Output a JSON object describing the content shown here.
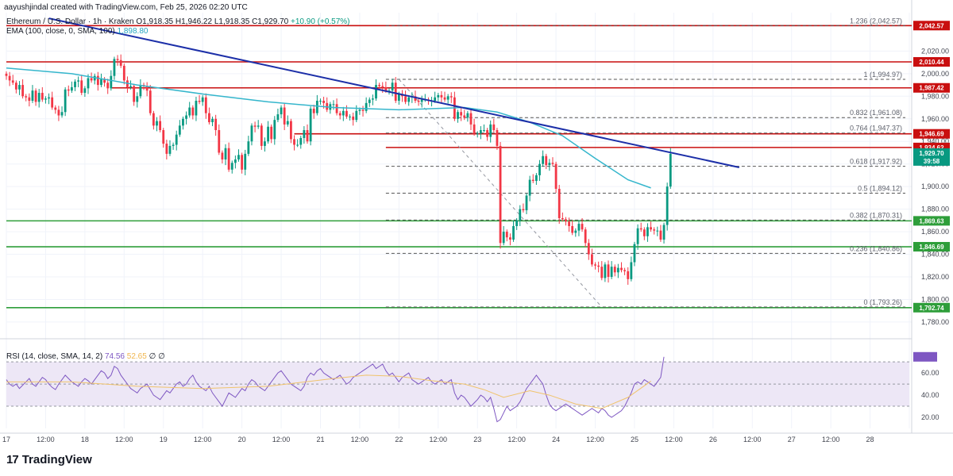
{
  "header": {
    "credit": "aayushjindal created with TradingView.com, Feb 25, 2026 02:20 UTC",
    "symbol": "Ethereum / U.S. Dollar · 1h · Kraken",
    "ohlc": "O1,918.35 H1,946.22 L1,918.35 C1,929.70",
    "change": "+10.90 (+0.57%)",
    "ema_label": "EMA (100, close, 0, SMA, 100)",
    "ema_value": "1,898.80"
  },
  "rsi_legend": {
    "label": "RSI (14, close, SMA, 14, 2)",
    "rsi": "74.56",
    "ma": "52.65",
    "extra": "∅ ∅"
  },
  "brand": {
    "mark": "17",
    "name": "TradingView"
  },
  "colors": {
    "up": "#089981",
    "down": "#f23645",
    "resistance": "#c90f0f",
    "support": "#2e9e3a",
    "trendline": "#1c2fa8",
    "ema": "#35b6cc",
    "rsi": "#7e57c2",
    "rsi_ma": "#f0c36b",
    "rsi_band": "#ede7f6",
    "fib_dash": "#555555"
  },
  "chart_data": {
    "type": "candlestick",
    "title": "Ethereum / U.S. Dollar · 1h · Kraken",
    "currency": "USD",
    "ylim": [
      1768,
      2054
    ],
    "y_ticks": [
      1780,
      1800,
      1820,
      1840,
      1860,
      1880,
      1900,
      1920,
      1940,
      1960,
      1980,
      2000,
      2020
    ],
    "y_tick_labels": [
      "1,780.00",
      "1,800.00",
      "1,820.00",
      "1,840.00",
      "1,860.00",
      "1,880.00",
      "1,900.00",
      "1,920.00",
      "1,940.00",
      "1,960.00",
      "1,980.00",
      "2,000.00",
      "2,020.00"
    ],
    "x_ticks": [
      "17",
      "12:00",
      "18",
      "12:00",
      "19",
      "12:00",
      "20",
      "12:00",
      "21",
      "12:00",
      "22",
      "12:00",
      "23",
      "12:00",
      "24",
      "12:00",
      "25",
      "12:00",
      "26",
      "12:00",
      "27",
      "12:00",
      "28",
      "12:00"
    ],
    "x_tick_hours": [
      0,
      12,
      24,
      36,
      48,
      60,
      72,
      84,
      96,
      108,
      120,
      132,
      144,
      156,
      168,
      180,
      192,
      204,
      216,
      228,
      240,
      252,
      264,
      276
    ],
    "last_price": "1,929.70",
    "countdown": "39:58",
    "horizontal_levels": [
      {
        "price": 2042.57,
        "label": "2,042.57",
        "kind": "resistance",
        "from_hour": 0
      },
      {
        "price": 2010.44,
        "label": "2,010.44",
        "kind": "resistance",
        "from_hour": 0
      },
      {
        "price": 1987.42,
        "label": "1,987.42",
        "kind": "resistance",
        "from_hour": 32
      },
      {
        "price": 1946.69,
        "label": "1,946.69",
        "kind": "resistance",
        "from_hour": 88
      },
      {
        "price": 1934.62,
        "label": "1,934.62",
        "kind": "resistance",
        "from_hour": 116
      },
      {
        "price": 1869.63,
        "label": "1,869.63",
        "kind": "support",
        "from_hour": 0
      },
      {
        "price": 1846.69,
        "label": "1,846.69",
        "kind": "support",
        "from_hour": 0
      },
      {
        "price": 1792.74,
        "label": "1,792.74",
        "kind": "support",
        "from_hour": 0
      }
    ],
    "fibonacci": [
      {
        "level": "1.236",
        "price": 2042.57,
        "label": "1.236 (2,042.57)"
      },
      {
        "level": "1",
        "price": 1994.97,
        "label": "1 (1,994.97)"
      },
      {
        "level": "0.832",
        "price": 1961.08,
        "label": "0.832 (1,961.08)"
      },
      {
        "level": "0.764",
        "price": 1947.37,
        "label": "0.764 (1,947.37)"
      },
      {
        "level": "0.618",
        "price": 1917.92,
        "label": "0.618 (1,917.92)"
      },
      {
        "level": "0.5",
        "price": 1894.12,
        "label": "0.5 (1,894.12)"
      },
      {
        "level": "0.382",
        "price": 1870.31,
        "label": "0.382 (1,870.31)"
      },
      {
        "level": "0.236",
        "price": 1840.86,
        "label": "0.236 (1,840.86)"
      },
      {
        "level": "0",
        "price": 1793.26,
        "label": "0 (1,793.26)"
      }
    ],
    "fib_range_hours": [
      116,
      192
    ],
    "trendline": [
      {
        "hour": 13,
        "price": 2049
      },
      {
        "hour": 224,
        "price": 1917
      }
    ],
    "fib_guide": [
      {
        "hour": 120,
        "price": 1994.97
      },
      {
        "hour": 182,
        "price": 1793.26
      }
    ],
    "closes": [
      1998,
      1994,
      1992,
      1986,
      1990,
      1980,
      1979,
      1976,
      1985,
      1975,
      1983,
      1977,
      1978,
      1979,
      1970,
      1968,
      1963,
      1966,
      1986,
      1985,
      1988,
      1993,
      1994,
      1983,
      1987,
      1996,
      1994,
      1998,
      1990,
      1995,
      1992,
      1987,
      1998,
      2013,
      2012,
      2007,
      1994,
      1988,
      1989,
      1975,
      1980,
      1990,
      1989,
      1985,
      1965,
      1954,
      1958,
      1950,
      1938,
      1929,
      1936,
      1937,
      1946,
      1954,
      1960,
      1963,
      1970,
      1963,
      1976,
      1975,
      1979,
      1965,
      1957,
      1960,
      1950,
      1930,
      1924,
      1934,
      1915,
      1921,
      1924,
      1928,
      1915,
      1929,
      1940,
      1954,
      1953,
      1954,
      1936,
      1940,
      1953,
      1942,
      1959,
      1964,
      1970,
      1955,
      1958,
      1942,
      1937,
      1937,
      1943,
      1950,
      1940,
      1969,
      1965,
      1976,
      1976,
      1974,
      1968,
      1973,
      1973,
      1965,
      1963,
      1967,
      1962,
      1962,
      1959,
      1967,
      1968,
      1967,
      1974,
      1977,
      1978,
      1990,
      1989,
      1988,
      1985,
      1985,
      1992,
      1976,
      1982,
      1980,
      1975,
      1979,
      1980,
      1976,
      1975,
      1977,
      1977,
      1976,
      1976,
      1979,
      1981,
      1979,
      1977,
      1980,
      1979,
      1960,
      1966,
      1963,
      1961,
      1965,
      1955,
      1947,
      1947,
      1950,
      1950,
      1944,
      1955,
      1950,
      1936,
      1850,
      1860,
      1855,
      1853,
      1865,
      1870,
      1880,
      1879,
      1892,
      1906,
      1905,
      1910,
      1920,
      1927,
      1919,
      1921,
      1920,
      1898,
      1872,
      1871,
      1869,
      1865,
      1859,
      1861,
      1867,
      1862,
      1850,
      1840,
      1831,
      1830,
      1829,
      1819,
      1831,
      1820,
      1829,
      1824,
      1828,
      1826,
      1825,
      1818,
      1833,
      1849,
      1863,
      1862,
      1856,
      1864,
      1862,
      1861,
      1861,
      1853,
      1866,
      1900,
      1929
    ],
    "ema100": [
      {
        "hour": 0,
        "price": 2005
      },
      {
        "hour": 20,
        "price": 2000
      },
      {
        "hour": 40,
        "price": 1990
      },
      {
        "hour": 60,
        "price": 1982
      },
      {
        "hour": 80,
        "price": 1975
      },
      {
        "hour": 100,
        "price": 1970
      },
      {
        "hour": 120,
        "price": 1968
      },
      {
        "hour": 140,
        "price": 1970
      },
      {
        "hour": 150,
        "price": 1966
      },
      {
        "hour": 160,
        "price": 1957
      },
      {
        "hour": 170,
        "price": 1945
      },
      {
        "hour": 180,
        "price": 1925
      },
      {
        "hour": 190,
        "price": 1906
      },
      {
        "hour": 197,
        "price": 1898.8
      }
    ],
    "rsi": {
      "ylim": [
        10,
        83
      ],
      "y_ticks": [
        20,
        40,
        60
      ],
      "y_tick_labels": [
        "20.00",
        "40.00",
        "60.00"
      ],
      "band": [
        30,
        70
      ],
      "midline": 50,
      "values": [
        54,
        50,
        48,
        50,
        46,
        49,
        52,
        55,
        50,
        48,
        52,
        56,
        54,
        50,
        47,
        45,
        50,
        54,
        58,
        55,
        52,
        50,
        48,
        52,
        55,
        53,
        50,
        54,
        58,
        62,
        60,
        55,
        58,
        66,
        64,
        58,
        54,
        50,
        46,
        44,
        42,
        46,
        48,
        50,
        45,
        40,
        38,
        36,
        40,
        44,
        42,
        46,
        50,
        52,
        48,
        50,
        55,
        58,
        52,
        48,
        46,
        44,
        48,
        42,
        38,
        34,
        30,
        36,
        42,
        40,
        38,
        42,
        46,
        44,
        50,
        54,
        52,
        48,
        46,
        44,
        48,
        52,
        56,
        60,
        62,
        58,
        54,
        50,
        48,
        46,
        44,
        48,
        56,
        60,
        58,
        62,
        64,
        60,
        58,
        56,
        54,
        56,
        58,
        54,
        50,
        52,
        56,
        58,
        60,
        62,
        64,
        66,
        68,
        64,
        66,
        68,
        62,
        58,
        60,
        56,
        52,
        56,
        58,
        60,
        54,
        52,
        50,
        52,
        54,
        56,
        52,
        50,
        52,
        54,
        50,
        52,
        54,
        42,
        36,
        40,
        38,
        34,
        30,
        33,
        36,
        40,
        38,
        34,
        38,
        28,
        16,
        18,
        24,
        30,
        26,
        28,
        30,
        34,
        40,
        46,
        50,
        54,
        58,
        54,
        50,
        40,
        32,
        28,
        26,
        28,
        30,
        32,
        30,
        28,
        26,
        24,
        22,
        24,
        26,
        28,
        26,
        24,
        28,
        26,
        22,
        20,
        22,
        24,
        26,
        30,
        36,
        42,
        50,
        52,
        50,
        54,
        52,
        50,
        48,
        52,
        56,
        74.56
      ],
      "ma": [
        {
          "hour": 0,
          "price": 52
        },
        {
          "hour": 20,
          "price": 52
        },
        {
          "hour": 40,
          "price": 48
        },
        {
          "hour": 60,
          "price": 46
        },
        {
          "hour": 80,
          "price": 48
        },
        {
          "hour": 100,
          "price": 55
        },
        {
          "hour": 110,
          "price": 58
        },
        {
          "hour": 120,
          "price": 57
        },
        {
          "hour": 130,
          "price": 53
        },
        {
          "hour": 140,
          "price": 50
        },
        {
          "hour": 146,
          "price": 45
        },
        {
          "hour": 152,
          "price": 38
        },
        {
          "hour": 160,
          "price": 44
        },
        {
          "hour": 166,
          "price": 40
        },
        {
          "hour": 174,
          "price": 32
        },
        {
          "hour": 182,
          "price": 28
        },
        {
          "hour": 190,
          "price": 38
        },
        {
          "hour": 197,
          "price": 52.65
        }
      ]
    }
  }
}
